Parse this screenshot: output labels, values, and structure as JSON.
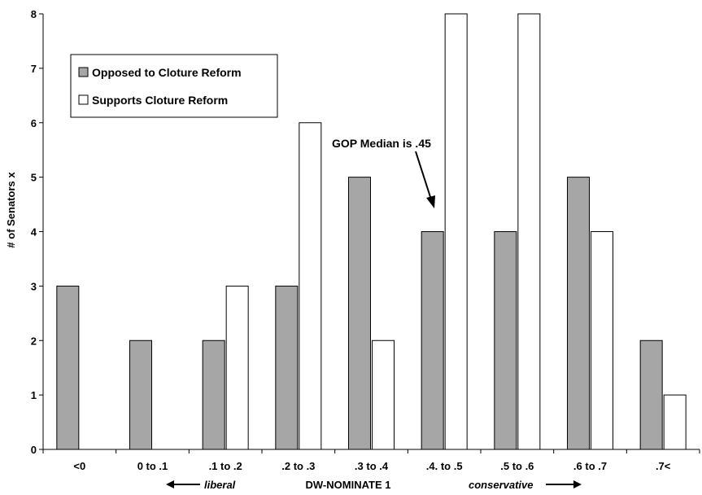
{
  "chart_data": {
    "type": "bar",
    "categories": [
      "<0",
      "0 to .1",
      ".1 to .2",
      ".2 to .3",
      ".3 to .4",
      ".4. to .5",
      ".5 to .6",
      ".6 to .7",
      ".7<"
    ],
    "series": [
      {
        "name": "Opposed to Cloture Reform",
        "values": [
          3,
          2,
          2,
          3,
          5,
          4,
          4,
          5,
          2
        ],
        "color": "#a6a6a6"
      },
      {
        "name": "Supports Cloture Reform",
        "values": [
          0,
          0,
          3,
          6,
          2,
          8,
          8,
          4,
          1
        ],
        "color": "#ffffff"
      }
    ],
    "ylabel": "# of Senators x",
    "xlabel": "DW-NOMINATE 1",
    "xlabel_left": "liberal",
    "xlabel_right": "conservative",
    "ylim": [
      0,
      8
    ],
    "yticks": [
      0,
      1,
      2,
      3,
      4,
      5,
      6,
      7,
      8
    ],
    "grid": false,
    "legend_position": "top-left",
    "annotation": {
      "text": "GOP Median is .45",
      "points_to_category": ".4. to .5"
    }
  }
}
